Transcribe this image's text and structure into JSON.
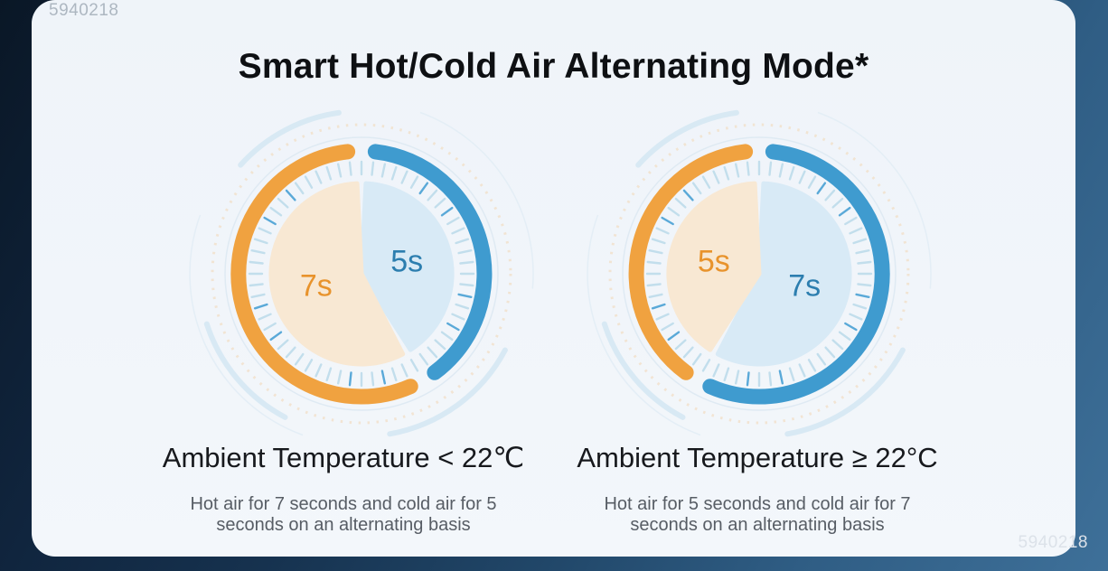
{
  "title": "Smart Hot/Cold Air Alternating Mode*",
  "watermarks": {
    "top_left": "5940218",
    "bottom_right": "5940218"
  },
  "colors": {
    "hot_arc": "#F0A240",
    "cold_arc": "#3F9BCF",
    "hot_fill": "#F8E8D3",
    "cold_fill": "#D8EAF6",
    "hot_text": "#E8932C",
    "cold_text": "#2C7EAF",
    "tick": "#C2DEEC",
    "tick_accent": "#5AA9D8"
  },
  "dials": [
    {
      "hot_seconds": 7,
      "cold_seconds": 5,
      "hot_label": "7s",
      "cold_label": "5s",
      "caption": "Ambient Temperature < 22℃",
      "description_lines": [
        "Hot air for 7 seconds and cold air for 5",
        "seconds on an alternating basis"
      ]
    },
    {
      "hot_seconds": 5,
      "cold_seconds": 7,
      "hot_label": "5s",
      "cold_label": "7s",
      "caption": "Ambient Temperature ≥ 22°C",
      "description_lines": [
        "Hot air for 5 seconds and cold air for 7",
        "seconds on an alternating basis"
      ]
    }
  ]
}
